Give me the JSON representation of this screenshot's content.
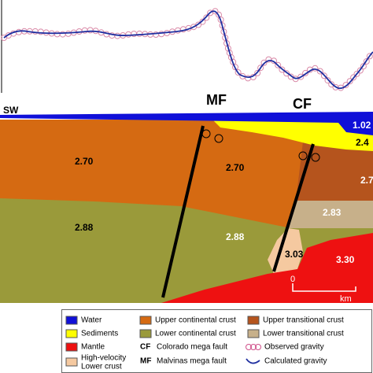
{
  "header": {
    "left_label": "SW",
    "faults": [
      "MF",
      "CF"
    ]
  },
  "section_labels": [
    "1.02",
    "2.4",
    "2.70",
    "2.70",
    "2.7",
    "2.88",
    "2.88",
    "2.83",
    "3.03",
    "3.30"
  ],
  "scale": {
    "zero": "0",
    "unit": "km"
  },
  "legend": {
    "units": [
      "Water",
      "Sediments",
      "Mantle",
      "Upper continental crust",
      "Lower continental crust",
      "Upper transitional crust",
      "Lower transitional crust"
    ],
    "high_velocity": [
      "High-velocity",
      "Lower crust"
    ],
    "faults": [
      {
        "abbr": "CF",
        "label": "Colorado mega fault"
      },
      {
        "abbr": "MF",
        "label": "Malvinas mega fault"
      }
    ],
    "gravity": [
      "Observed gravity",
      "Calculated gravity"
    ]
  }
}
